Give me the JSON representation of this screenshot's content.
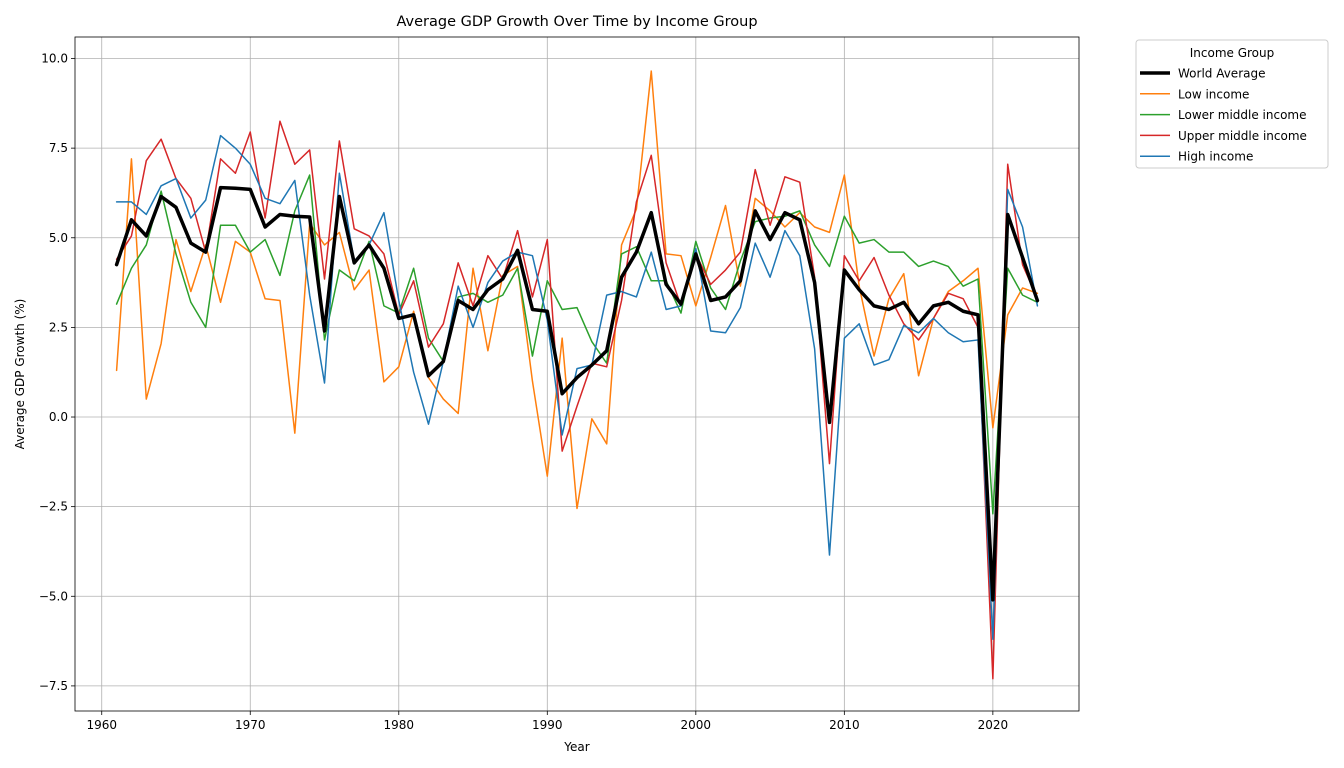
{
  "chart_data": {
    "type": "line",
    "title": "Average GDP Growth Over Time by Income Group",
    "xlabel": "Year",
    "ylabel": "Average GDP Growth (%)",
    "xlim": [
      1958.2,
      2025.8
    ],
    "ylim": [
      -8.2,
      10.6
    ],
    "x_ticks": [
      1960,
      1970,
      1980,
      1990,
      2000,
      2010,
      2020
    ],
    "y_ticks": [
      -7.5,
      -5.0,
      -2.5,
      0.0,
      2.5,
      5.0,
      7.5,
      10.0
    ],
    "y_tick_labels": [
      "−7.5",
      "−5.0",
      "−2.5",
      "0.0",
      "2.5",
      "5.0",
      "7.5",
      "10.0"
    ],
    "grid": true,
    "legend": {
      "title": "Income Group",
      "placement": "outside-right-top"
    },
    "x": [
      1961,
      1962,
      1963,
      1964,
      1965,
      1966,
      1967,
      1968,
      1969,
      1970,
      1971,
      1972,
      1973,
      1974,
      1975,
      1976,
      1977,
      1978,
      1979,
      1980,
      1981,
      1982,
      1983,
      1984,
      1985,
      1986,
      1987,
      1988,
      1989,
      1990,
      1991,
      1992,
      1993,
      1994,
      1995,
      1996,
      1997,
      1998,
      1999,
      2000,
      2001,
      2002,
      2003,
      2004,
      2005,
      2006,
      2007,
      2008,
      2009,
      2010,
      2011,
      2012,
      2013,
      2014,
      2015,
      2016,
      2017,
      2018,
      2019,
      2020,
      2021,
      2022,
      2023
    ],
    "series": [
      {
        "name": "World Average",
        "color": "#000000",
        "width": 3.5,
        "values": [
          4.25,
          5.5,
          5.05,
          6.15,
          5.85,
          4.85,
          4.6,
          6.4,
          6.38,
          6.35,
          5.3,
          5.65,
          5.6,
          5.58,
          2.4,
          6.15,
          4.3,
          4.8,
          4.15,
          2.75,
          2.85,
          1.15,
          1.55,
          3.25,
          3.0,
          3.55,
          3.85,
          4.65,
          3.0,
          2.95,
          0.65,
          1.1,
          1.45,
          1.85,
          3.9,
          4.6,
          5.7,
          3.7,
          3.15,
          4.55,
          3.25,
          3.35,
          3.8,
          5.75,
          4.95,
          5.7,
          5.5,
          3.75,
          -0.15,
          4.1,
          3.55,
          3.1,
          3.0,
          3.2,
          2.6,
          3.1,
          3.2,
          2.95,
          2.85,
          -5.1,
          5.65,
          4.45,
          3.25
        ]
      },
      {
        "name": "Low income",
        "color": "#ff7f0e",
        "width": 1.5,
        "values": [
          1.3,
          7.2,
          0.5,
          2.05,
          4.95,
          3.5,
          4.8,
          3.2,
          4.9,
          4.6,
          3.3,
          3.25,
          -0.45,
          5.4,
          4.8,
          5.15,
          3.55,
          4.1,
          0.98,
          1.4,
          2.95,
          1.1,
          0.5,
          0.1,
          4.15,
          1.85,
          3.95,
          4.2,
          1.0,
          -1.65,
          2.2,
          -2.55,
          -0.05,
          -0.75,
          4.8,
          5.8,
          9.65,
          4.55,
          4.5,
          3.1,
          4.45,
          5.9,
          3.65,
          6.1,
          5.75,
          5.3,
          5.7,
          5.3,
          5.15,
          6.75,
          3.65,
          1.7,
          3.3,
          4.0,
          1.15,
          2.75,
          3.5,
          3.8,
          4.15,
          -0.3,
          2.85,
          3.6,
          3.45
        ]
      },
      {
        "name": "Lower middle income",
        "color": "#2ca02c",
        "width": 1.5,
        "values": [
          3.15,
          4.15,
          4.8,
          6.3,
          4.55,
          3.2,
          2.5,
          5.35,
          5.35,
          4.6,
          4.95,
          3.95,
          5.75,
          6.75,
          2.15,
          4.1,
          3.8,
          4.9,
          3.1,
          2.9,
          4.15,
          2.2,
          1.55,
          3.35,
          3.45,
          3.2,
          3.4,
          4.15,
          1.7,
          3.8,
          3.0,
          3.05,
          2.1,
          1.5,
          4.55,
          4.75,
          3.8,
          3.8,
          2.9,
          4.9,
          3.6,
          3.0,
          4.35,
          5.45,
          5.55,
          5.6,
          5.75,
          4.8,
          4.2,
          5.6,
          4.85,
          4.95,
          4.6,
          4.6,
          4.2,
          4.35,
          4.2,
          3.65,
          3.85,
          -2.7,
          4.15,
          3.4,
          3.2
        ]
      },
      {
        "name": "Upper middle income",
        "color": "#d62728",
        "width": 1.5,
        "values": [
          4.4,
          5.05,
          7.15,
          7.75,
          6.65,
          6.1,
          4.6,
          7.2,
          6.8,
          7.95,
          5.55,
          8.25,
          7.05,
          7.45,
          3.85,
          7.7,
          5.25,
          5.05,
          4.55,
          2.85,
          3.8,
          1.95,
          2.6,
          4.3,
          3.1,
          4.5,
          3.85,
          5.2,
          3.35,
          4.95,
          -0.95,
          0.3,
          1.5,
          1.4,
          3.25,
          6.0,
          7.3,
          4.3,
          3.1,
          4.55,
          3.7,
          4.1,
          4.6,
          6.9,
          5.35,
          6.7,
          6.55,
          3.9,
          -1.3,
          4.5,
          3.8,
          4.45,
          3.4,
          2.6,
          2.15,
          2.75,
          3.45,
          3.3,
          2.5,
          -7.3,
          7.05,
          4.25,
          3.3
        ]
      },
      {
        "name": "High income",
        "color": "#1f77b4",
        "width": 1.5,
        "values": [
          6.0,
          6.0,
          5.65,
          6.45,
          6.65,
          5.55,
          6.05,
          7.85,
          7.5,
          7.05,
          6.1,
          5.95,
          6.6,
          3.4,
          0.95,
          6.8,
          4.35,
          4.8,
          5.7,
          3.25,
          1.25,
          -0.2,
          1.55,
          3.65,
          2.5,
          3.75,
          4.35,
          4.6,
          4.5,
          2.7,
          -0.5,
          1.35,
          1.45,
          3.4,
          3.5,
          3.35,
          4.6,
          3.0,
          3.1,
          4.7,
          2.4,
          2.35,
          3.05,
          4.85,
          3.9,
          5.2,
          4.5,
          1.9,
          -3.85,
          2.2,
          2.6,
          1.45,
          1.6,
          2.55,
          2.35,
          2.75,
          2.35,
          2.1,
          2.15,
          -6.2,
          6.35,
          5.3,
          3.1
        ]
      }
    ]
  }
}
